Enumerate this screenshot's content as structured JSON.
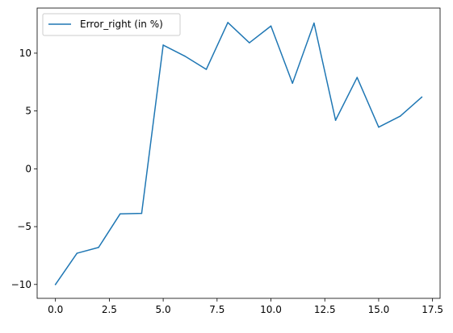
{
  "chart_data": {
    "type": "line",
    "x": [
      0,
      1,
      2,
      3,
      4,
      5,
      6,
      7,
      8,
      9,
      10,
      11,
      12,
      13,
      14,
      15,
      16,
      17
    ],
    "series": [
      {
        "name": "Error_right (in %)",
        "color": "#1f77b4",
        "values": [
          -10.0,
          -7.3,
          -6.8,
          -3.9,
          -3.85,
          10.7,
          9.75,
          8.6,
          12.65,
          10.9,
          12.35,
          7.4,
          12.6,
          4.2,
          7.9,
          3.6,
          4.55,
          6.2
        ]
      }
    ],
    "xlim": [
      -0.85,
      17.85
    ],
    "ylim": [
      -11.2,
      13.9
    ],
    "xticks": [
      0.0,
      2.5,
      5.0,
      7.5,
      10.0,
      12.5,
      15.0,
      17.5
    ],
    "xtick_labels": [
      "0.0",
      "2.5",
      "5.0",
      "7.5",
      "10.0",
      "12.5",
      "15.0",
      "17.5"
    ],
    "yticks": [
      -10,
      -5,
      0,
      5,
      10
    ],
    "ytick_labels": [
      "−10",
      "−5",
      "0",
      "5",
      "10"
    ],
    "title": "",
    "xlabel": "",
    "ylabel": "",
    "grid": false,
    "legend_position": "upper-left"
  }
}
